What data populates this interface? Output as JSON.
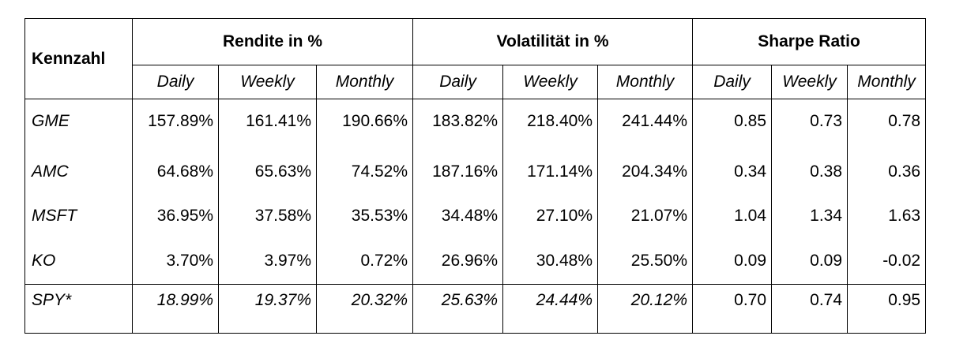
{
  "table": {
    "corner_label": "Kennzahl",
    "groups": [
      "Rendite in %",
      "Volatilität in %",
      "Sharpe Ratio"
    ],
    "sub_headers": [
      "Daily",
      "Weekly",
      "Monthly",
      "Daily",
      "Weekly",
      "Monthly",
      "Daily",
      "Weekly",
      "Monthly"
    ],
    "rows": [
      {
        "label": "GME",
        "cells": [
          "157.89%",
          "161.41%",
          "190.66%",
          "183.82%",
          "218.40%",
          "241.44%",
          "0.85",
          "0.73",
          "0.78"
        ]
      },
      {
        "label": "AMC",
        "cells": [
          "64.68%",
          "65.63%",
          "74.52%",
          "187.16%",
          "171.14%",
          "204.34%",
          "0.34",
          "0.38",
          "0.36"
        ]
      },
      {
        "label": "MSFT",
        "cells": [
          "36.95%",
          "37.58%",
          "35.53%",
          "34.48%",
          "27.10%",
          "21.07%",
          "1.04",
          "1.34",
          "1.63"
        ]
      },
      {
        "label": "KO",
        "cells": [
          "3.70%",
          "3.97%",
          "0.72%",
          "26.96%",
          "30.48%",
          "25.50%",
          "0.09",
          "0.09",
          "-0.02"
        ]
      },
      {
        "label": "SPY*",
        "cells": [
          "18.99%",
          "19.37%",
          "20.32%",
          "25.63%",
          "24.44%",
          "20.12%",
          "0.70",
          "0.74",
          "0.95"
        ]
      }
    ]
  }
}
